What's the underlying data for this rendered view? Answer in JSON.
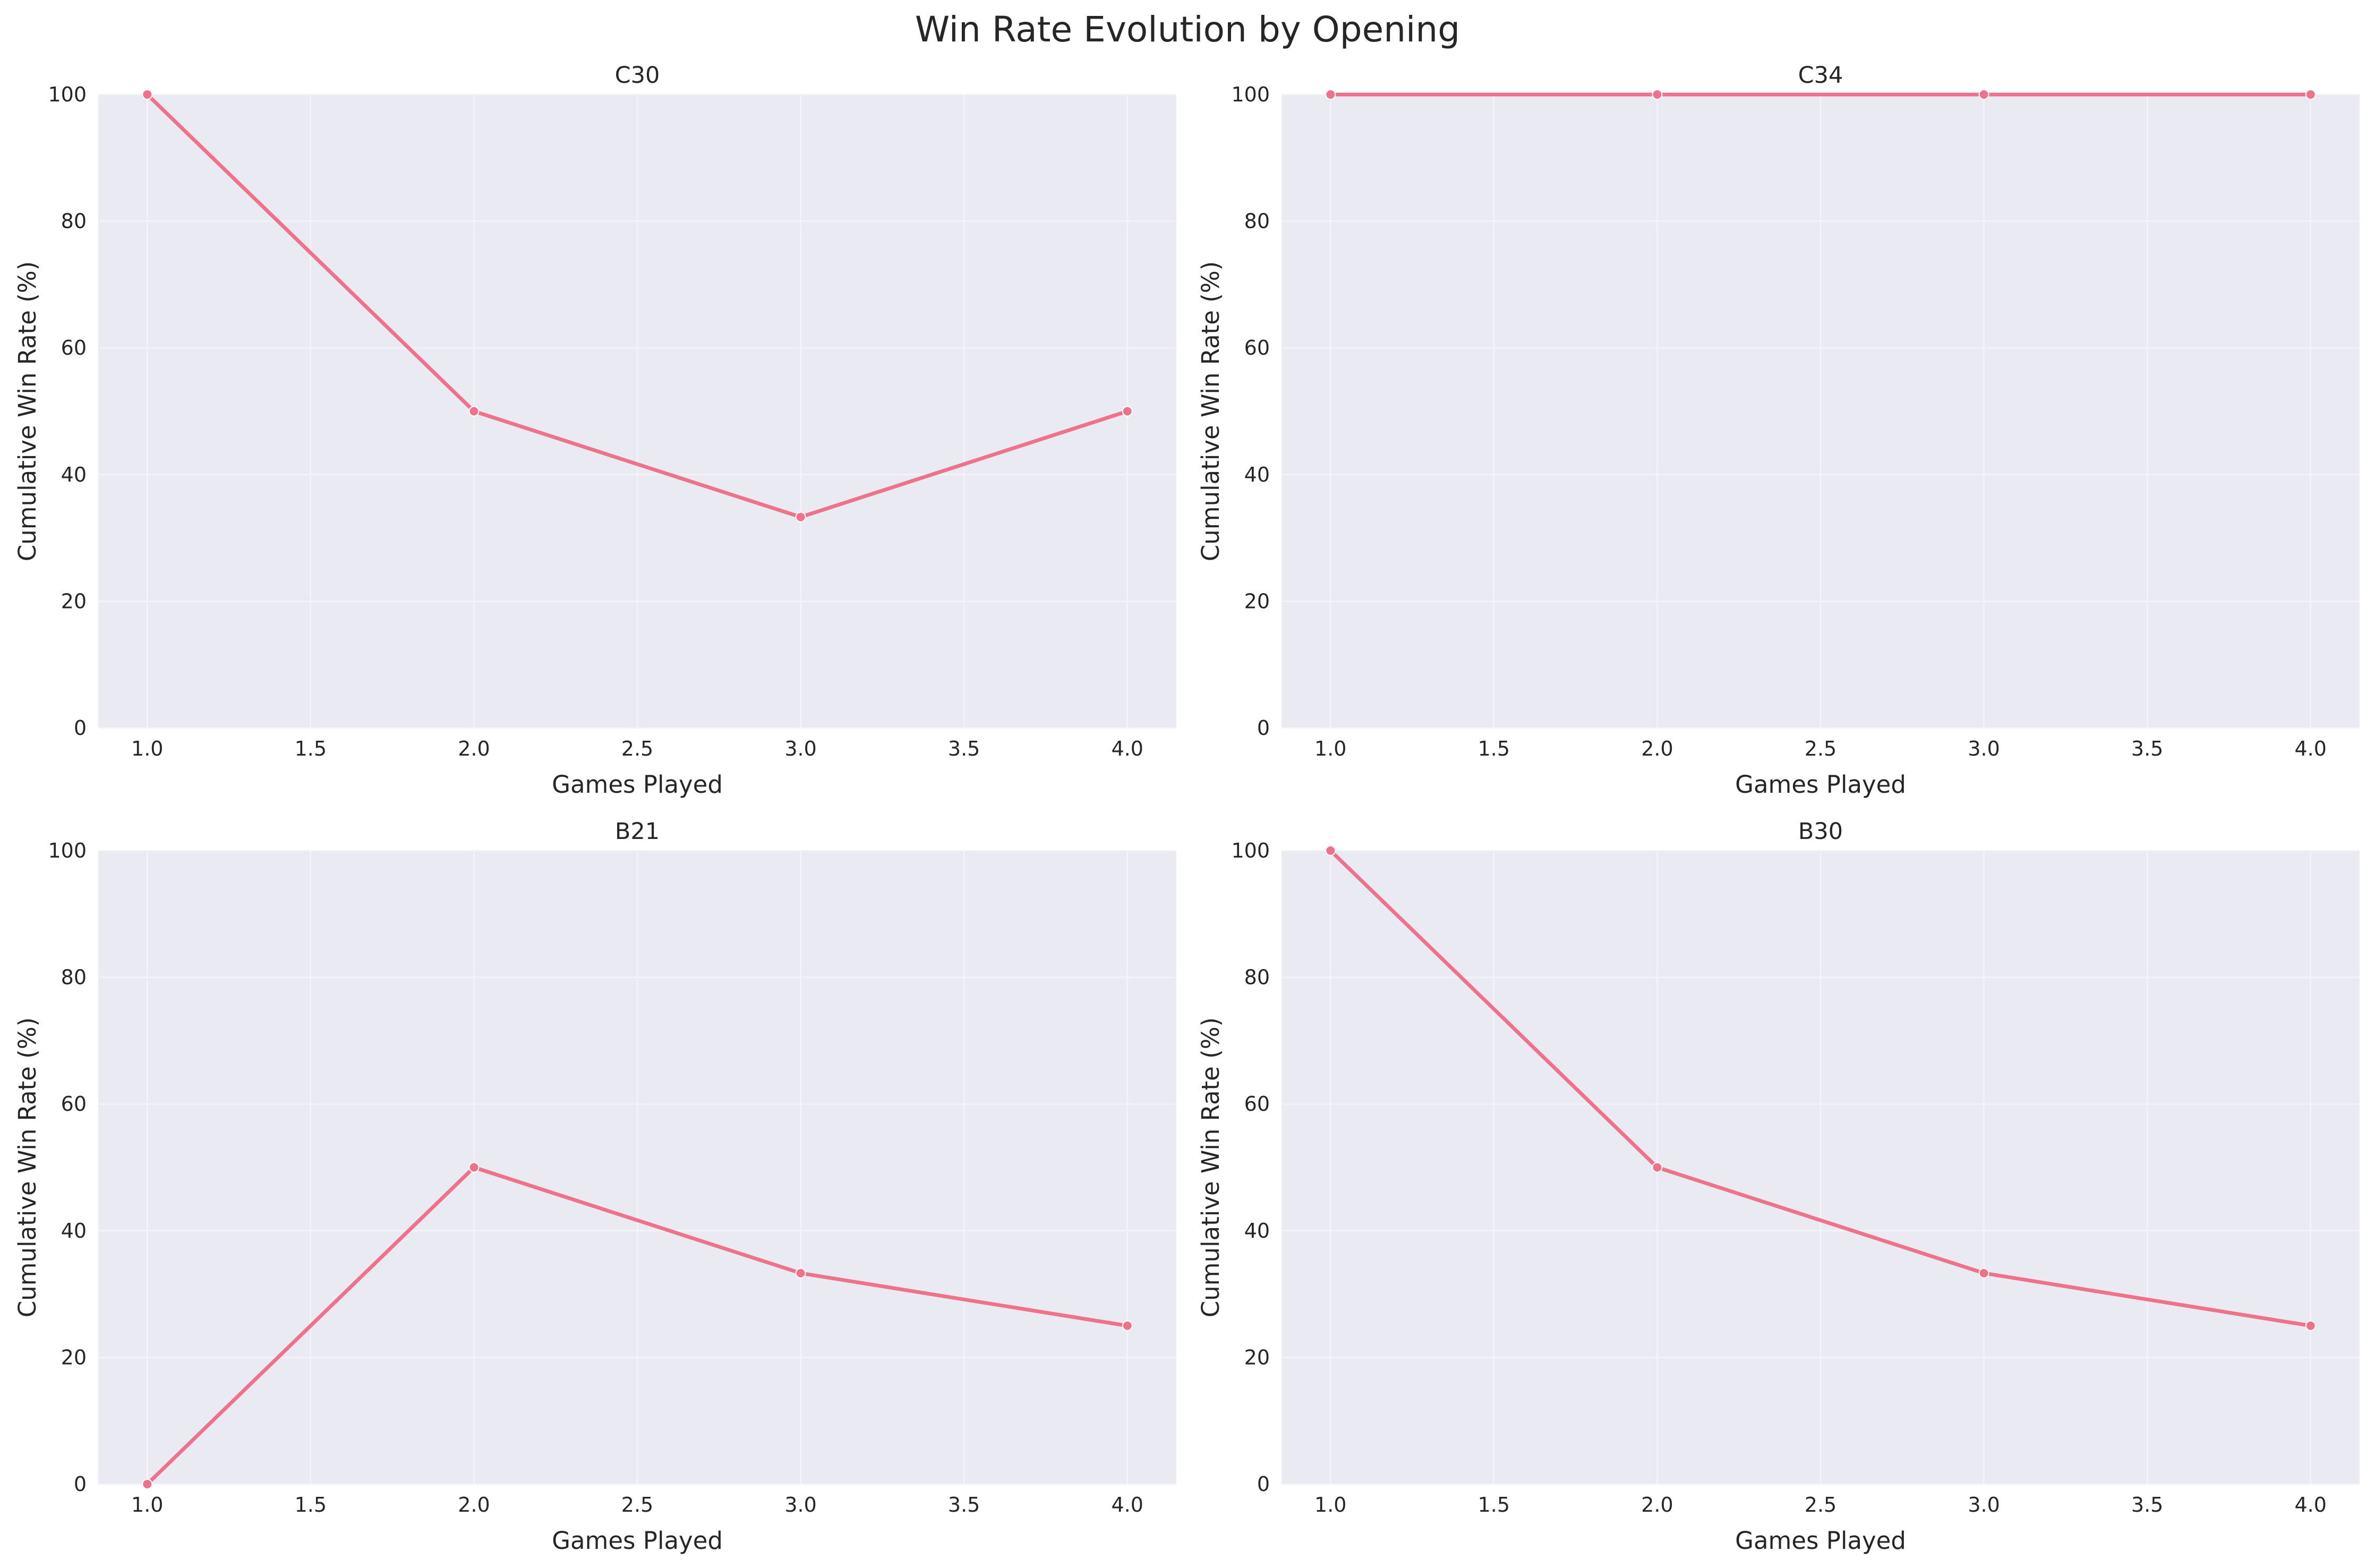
{
  "figure": {
    "title": "Win Rate Evolution by Opening"
  },
  "style": {
    "plot_background": "#EAEAF2",
    "grid_color": "#F4F4F8",
    "line_color": "#F0718A",
    "text_color": "#262626"
  },
  "chart_data": [
    {
      "type": "line",
      "title": "C30",
      "xlabel": "Games Played",
      "ylabel": "Cumulative Win Rate (%)",
      "x": [
        1,
        2,
        3,
        4
      ],
      "series": [
        {
          "values": [
            100,
            50,
            33.3,
            50
          ]
        }
      ],
      "xlim": [
        0.85,
        4.15
      ],
      "ylim": [
        0,
        100
      ],
      "xticks": [
        "1.0",
        "1.5",
        "2.0",
        "2.5",
        "3.0",
        "3.5",
        "4.0"
      ],
      "yticks": [
        "0",
        "20",
        "40",
        "60",
        "80",
        "100"
      ],
      "grid": true
    },
    {
      "type": "line",
      "title": "C34",
      "xlabel": "Games Played",
      "ylabel": "Cumulative Win Rate (%)",
      "x": [
        1,
        2,
        3,
        4
      ],
      "series": [
        {
          "values": [
            100,
            100,
            100,
            100
          ]
        }
      ],
      "xlim": [
        0.85,
        4.15
      ],
      "ylim": [
        0,
        100
      ],
      "xticks": [
        "1.0",
        "1.5",
        "2.0",
        "2.5",
        "3.0",
        "3.5",
        "4.0"
      ],
      "yticks": [
        "0",
        "20",
        "40",
        "60",
        "80",
        "100"
      ],
      "grid": true
    },
    {
      "type": "line",
      "title": "B21",
      "xlabel": "Games Played",
      "ylabel": "Cumulative Win Rate (%)",
      "x": [
        1,
        2,
        3,
        4
      ],
      "series": [
        {
          "values": [
            0,
            50,
            33.3,
            25
          ]
        }
      ],
      "xlim": [
        0.85,
        4.15
      ],
      "ylim": [
        0,
        100
      ],
      "xticks": [
        "1.0",
        "1.5",
        "2.0",
        "2.5",
        "3.0",
        "3.5",
        "4.0"
      ],
      "yticks": [
        "0",
        "20",
        "40",
        "60",
        "80",
        "100"
      ],
      "grid": true
    },
    {
      "type": "line",
      "title": "B30",
      "xlabel": "Games Played",
      "ylabel": "Cumulative Win Rate (%)",
      "x": [
        1,
        2,
        3,
        4
      ],
      "series": [
        {
          "values": [
            100,
            50,
            33.3,
            25
          ]
        }
      ],
      "xlim": [
        0.85,
        4.15
      ],
      "ylim": [
        0,
        100
      ],
      "xticks": [
        "1.0",
        "1.5",
        "2.0",
        "2.5",
        "3.0",
        "3.5",
        "4.0"
      ],
      "yticks": [
        "0",
        "20",
        "40",
        "60",
        "80",
        "100"
      ],
      "grid": true
    }
  ]
}
